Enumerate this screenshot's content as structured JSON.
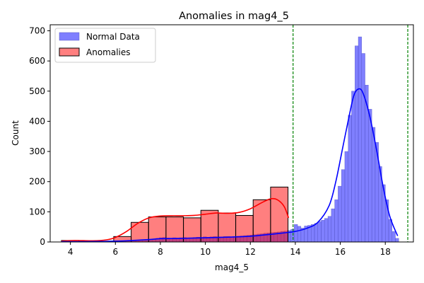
{
  "chart_data": {
    "type": "histogram",
    "title": "Anomalies in mag4_5",
    "xlabel": "mag4_5",
    "ylabel": "Count",
    "xlim": [
      3.1,
      19.25
    ],
    "ylim": [
      0,
      720
    ],
    "xticks": [
      4,
      6,
      8,
      10,
      12,
      14,
      16,
      18
    ],
    "yticks": [
      0,
      100,
      200,
      300,
      400,
      500,
      600,
      700
    ],
    "legend_position": "top-left",
    "vlines": {
      "x": [
        13.9,
        19.0
      ],
      "color": "#008000",
      "style": "dashed"
    },
    "series": [
      {
        "name": "Normal Data",
        "color": "#0000ff",
        "bin_width": 0.15,
        "bins": [
          {
            "x0": 6.0,
            "count": 2
          },
          {
            "x0": 6.15,
            "count": 2
          },
          {
            "x0": 6.3,
            "count": 3
          },
          {
            "x0": 6.45,
            "count": 3
          },
          {
            "x0": 6.6,
            "count": 4
          },
          {
            "x0": 6.75,
            "count": 4
          },
          {
            "x0": 6.9,
            "count": 5
          },
          {
            "x0": 7.05,
            "count": 5
          },
          {
            "x0": 7.2,
            "count": 6
          },
          {
            "x0": 7.35,
            "count": 7
          },
          {
            "x0": 7.5,
            "count": 8
          },
          {
            "x0": 7.65,
            "count": 9
          },
          {
            "x0": 7.8,
            "count": 12
          },
          {
            "x0": 7.95,
            "count": 14
          },
          {
            "x0": 8.1,
            "count": 15
          },
          {
            "x0": 8.25,
            "count": 13
          },
          {
            "x0": 8.4,
            "count": 12
          },
          {
            "x0": 8.55,
            "count": 14
          },
          {
            "x0": 8.7,
            "count": 13
          },
          {
            "x0": 8.85,
            "count": 14
          },
          {
            "x0": 9.0,
            "count": 15
          },
          {
            "x0": 9.15,
            "count": 14
          },
          {
            "x0": 9.3,
            "count": 14
          },
          {
            "x0": 9.45,
            "count": 15
          },
          {
            "x0": 9.6,
            "count": 16
          },
          {
            "x0": 9.75,
            "count": 15
          },
          {
            "x0": 9.9,
            "count": 17
          },
          {
            "x0": 10.05,
            "count": 16
          },
          {
            "x0": 10.2,
            "count": 17
          },
          {
            "x0": 10.35,
            "count": 18
          },
          {
            "x0": 10.5,
            "count": 17
          },
          {
            "x0": 10.65,
            "count": 17
          },
          {
            "x0": 10.8,
            "count": 18
          },
          {
            "x0": 10.95,
            "count": 18
          },
          {
            "x0": 11.1,
            "count": 17
          },
          {
            "x0": 11.25,
            "count": 18
          },
          {
            "x0": 11.4,
            "count": 19
          },
          {
            "x0": 11.55,
            "count": 20
          },
          {
            "x0": 11.7,
            "count": 21
          },
          {
            "x0": 11.85,
            "count": 22
          },
          {
            "x0": 12.0,
            "count": 23
          },
          {
            "x0": 12.15,
            "count": 24
          },
          {
            "x0": 12.3,
            "count": 26
          },
          {
            "x0": 12.45,
            "count": 27
          },
          {
            "x0": 12.6,
            "count": 29
          },
          {
            "x0": 12.75,
            "count": 30
          },
          {
            "x0": 12.9,
            "count": 31
          },
          {
            "x0": 13.05,
            "count": 32
          },
          {
            "x0": 13.2,
            "count": 33
          },
          {
            "x0": 13.35,
            "count": 35
          },
          {
            "x0": 13.5,
            "count": 36
          },
          {
            "x0": 13.65,
            "count": 38
          },
          {
            "x0": 13.8,
            "count": 42
          },
          {
            "x0": 13.95,
            "count": 58
          },
          {
            "x0": 14.1,
            "count": 52
          },
          {
            "x0": 14.25,
            "count": 46
          },
          {
            "x0": 14.4,
            "count": 53
          },
          {
            "x0": 14.55,
            "count": 55
          },
          {
            "x0": 14.7,
            "count": 58
          },
          {
            "x0": 14.85,
            "count": 62
          },
          {
            "x0": 15.0,
            "count": 68
          },
          {
            "x0": 15.15,
            "count": 72
          },
          {
            "x0": 15.3,
            "count": 78
          },
          {
            "x0": 15.45,
            "count": 85
          },
          {
            "x0": 15.6,
            "count": 110
          },
          {
            "x0": 15.75,
            "count": 140
          },
          {
            "x0": 15.9,
            "count": 185
          },
          {
            "x0": 16.05,
            "count": 240
          },
          {
            "x0": 16.2,
            "count": 300
          },
          {
            "x0": 16.35,
            "count": 420
          },
          {
            "x0": 16.5,
            "count": 500
          },
          {
            "x0": 16.65,
            "count": 650
          },
          {
            "x0": 16.8,
            "count": 680
          },
          {
            "x0": 16.95,
            "count": 625
          },
          {
            "x0": 17.1,
            "count": 520
          },
          {
            "x0": 17.25,
            "count": 440
          },
          {
            "x0": 17.4,
            "count": 380
          },
          {
            "x0": 17.55,
            "count": 330
          },
          {
            "x0": 17.7,
            "count": 250
          },
          {
            "x0": 17.85,
            "count": 190
          },
          {
            "x0": 18.0,
            "count": 140
          },
          {
            "x0": 18.15,
            "count": 75
          },
          {
            "x0": 18.3,
            "count": 35
          },
          {
            "x0": 18.45,
            "count": 12
          }
        ],
        "kde": [
          [
            3.6,
            1
          ],
          [
            4.5,
            1
          ],
          [
            5.5,
            2
          ],
          [
            6.5,
            4
          ],
          [
            7.5,
            8
          ],
          [
            8.0,
            11
          ],
          [
            9.0,
            12
          ],
          [
            10.0,
            14
          ],
          [
            11.0,
            16
          ],
          [
            12.0,
            19
          ],
          [
            13.0,
            26
          ],
          [
            13.5,
            30
          ],
          [
            14.0,
            35
          ],
          [
            14.5,
            45
          ],
          [
            15.0,
            65
          ],
          [
            15.5,
            120
          ],
          [
            15.8,
            200
          ],
          [
            16.1,
            310
          ],
          [
            16.4,
            420
          ],
          [
            16.6,
            485
          ],
          [
            16.8,
            507
          ],
          [
            17.0,
            495
          ],
          [
            17.3,
            420
          ],
          [
            17.6,
            310
          ],
          [
            17.9,
            185
          ],
          [
            18.2,
            85
          ],
          [
            18.55,
            20
          ]
        ]
      },
      {
        "name": "Anomalies",
        "color": "#ff0000",
        "bin_width": 0.775,
        "bins": [
          {
            "x0": 3.6,
            "count": 5
          },
          {
            "x0": 4.375,
            "count": 4
          },
          {
            "x0": 5.15,
            "count": 2
          },
          {
            "x0": 5.925,
            "count": 18
          },
          {
            "x0": 6.7,
            "count": 65
          },
          {
            "x0": 7.475,
            "count": 83
          },
          {
            "x0": 8.25,
            "count": 83
          },
          {
            "x0": 9.025,
            "count": 80
          },
          {
            "x0": 9.8,
            "count": 105
          },
          {
            "x0": 10.575,
            "count": 96
          },
          {
            "x0": 11.35,
            "count": 88
          },
          {
            "x0": 12.125,
            "count": 140
          },
          {
            "x0": 12.9,
            "count": 182
          }
        ],
        "kde": [
          [
            3.6,
            3
          ],
          [
            4.2,
            5
          ],
          [
            5.0,
            4
          ],
          [
            5.6,
            7
          ],
          [
            6.0,
            15
          ],
          [
            6.5,
            35
          ],
          [
            7.0,
            62
          ],
          [
            7.5,
            80
          ],
          [
            8.0,
            86
          ],
          [
            8.5,
            87
          ],
          [
            9.0,
            87
          ],
          [
            9.5,
            88
          ],
          [
            10.0,
            92
          ],
          [
            10.5,
            96
          ],
          [
            11.0,
            95
          ],
          [
            11.5,
            98
          ],
          [
            12.0,
            110
          ],
          [
            12.5,
            130
          ],
          [
            12.9,
            143
          ],
          [
            13.2,
            140
          ],
          [
            13.5,
            118
          ],
          [
            13.7,
            80
          ]
        ]
      }
    ]
  }
}
